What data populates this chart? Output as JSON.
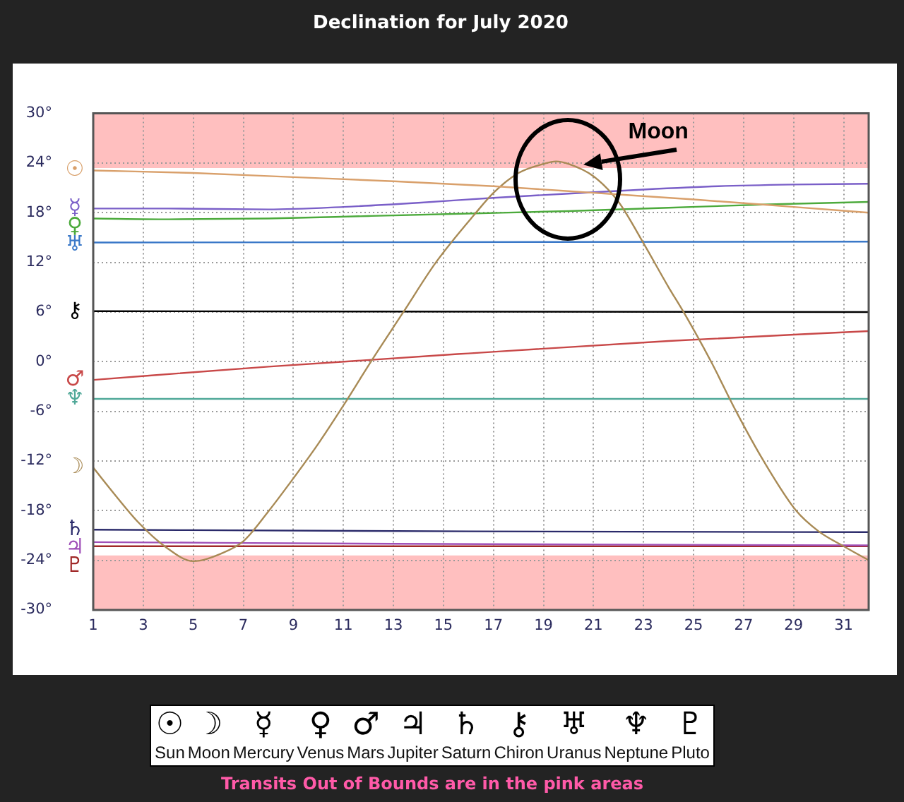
{
  "chart_data": {
    "type": "line",
    "title": "Declination for July 2020",
    "xlim": [
      1,
      32
    ],
    "xticks": [
      1,
      3,
      5,
      7,
      9,
      11,
      13,
      15,
      17,
      19,
      21,
      23,
      25,
      27,
      29,
      31
    ],
    "ylim": [
      -30,
      30
    ],
    "yticks": [
      {
        "value": -30,
        "label": "-30°"
      },
      {
        "value": -24,
        "label": "-24°"
      },
      {
        "value": -18,
        "label": "-18°"
      },
      {
        "value": -12,
        "label": "-12°"
      },
      {
        "value": -6,
        "label": "-6°"
      },
      {
        "value": 0,
        "label": "0°"
      },
      {
        "value": 6,
        "label": "6°"
      },
      {
        "value": 12,
        "label": "12°"
      },
      {
        "value": 18,
        "label": "18°"
      },
      {
        "value": 24,
        "label": "24°"
      },
      {
        "value": 30,
        "label": "30°"
      }
    ],
    "grid": true,
    "legend": "bottom",
    "bands": [
      {
        "axis": "y",
        "from": 23.4,
        "to": 30,
        "color": "#ffbfbf"
      },
      {
        "axis": "y",
        "from": -30,
        "to": -23.4,
        "color": "#ffbfbf"
      }
    ],
    "series": [
      {
        "name": "☉",
        "color": "#d9a06b",
        "x": [
          1,
          5,
          9,
          13,
          17,
          21,
          25,
          29,
          32
        ],
        "values": [
          23.1,
          22.8,
          22.3,
          21.8,
          21.2,
          20.4,
          19.6,
          18.7,
          18.0
        ]
      },
      {
        "name": "☽",
        "color": "#a88a55",
        "x": [
          1,
          1.9,
          2.8,
          3.9,
          5,
          6.1,
          7,
          8,
          9,
          10,
          11,
          12.1,
          13.4,
          14.7,
          16.3,
          17,
          18,
          19,
          19.5,
          20,
          21,
          22,
          23,
          24,
          24.6,
          25.7,
          26.7,
          27.8,
          29.1,
          30,
          31,
          32
        ],
        "values": [
          -12.8,
          -16.2,
          -19.4,
          -22.4,
          -24.1,
          -23.2,
          -21.7,
          -18.1,
          -14.1,
          -9.9,
          -5.3,
          0,
          6,
          12,
          18,
          20.4,
          22.8,
          23.9,
          24.2,
          23.9,
          22.4,
          19.3,
          14.3,
          9,
          6,
          0,
          -6,
          -12,
          -18,
          -20.5,
          -22.3,
          -24
        ]
      },
      {
        "name": "☿",
        "color": "#7a5fc8",
        "x": [
          1,
          4,
          8,
          11,
          14,
          17,
          20,
          23,
          26,
          29,
          32
        ],
        "values": [
          18.5,
          18.5,
          18.4,
          18.7,
          19.2,
          19.8,
          20.3,
          20.8,
          21.2,
          21.4,
          21.5
        ]
      },
      {
        "name": "♀",
        "color": "#4caa3c",
        "x": [
          1,
          4,
          8,
          12,
          16,
          20,
          24,
          28,
          32
        ],
        "values": [
          17.3,
          17.2,
          17.3,
          17.6,
          17.9,
          18.2,
          18.6,
          19.0,
          19.3
        ]
      },
      {
        "name": "♂",
        "color": "#c84848",
        "x": [
          1,
          8,
          16,
          24,
          32
        ],
        "values": [
          -2.2,
          -0.6,
          1.0,
          2.5,
          3.7
        ]
      },
      {
        "name": "♃",
        "color": "#a050b8",
        "x": [
          1,
          13,
          32
        ],
        "values": [
          -21.8,
          -22.0,
          -22.2
        ]
      },
      {
        "name": "♄",
        "color": "#2a2a6a",
        "x": [
          1,
          16,
          32
        ],
        "values": [
          -20.3,
          -20.5,
          -20.6
        ]
      },
      {
        "name": "⚷",
        "color": "#000000",
        "x": [
          1,
          32
        ],
        "values": [
          6.1,
          6.0
        ]
      },
      {
        "name": "♅",
        "color": "#3a78c8",
        "x": [
          1,
          32
        ],
        "values": [
          14.4,
          14.5
        ]
      },
      {
        "name": "♆",
        "color": "#50a898",
        "x": [
          1,
          32
        ],
        "values": [
          -4.5,
          -4.5
        ]
      },
      {
        "name": "♇",
        "color": "#a02828",
        "x": [
          1,
          32
        ],
        "values": [
          -22.3,
          -22.3
        ]
      }
    ],
    "annotations": [
      "Sun",
      "Moon",
      "Mercury",
      "Venus",
      "Mars",
      "Jupiter",
      "Saturn",
      "Chiron",
      "Uranus",
      "Neptune",
      "Pluto",
      {
        "text": "Moon",
        "x": 20.6,
        "y": 23.8
      },
      "Transits Out of Bounds are in the pink areas"
    ]
  }
}
